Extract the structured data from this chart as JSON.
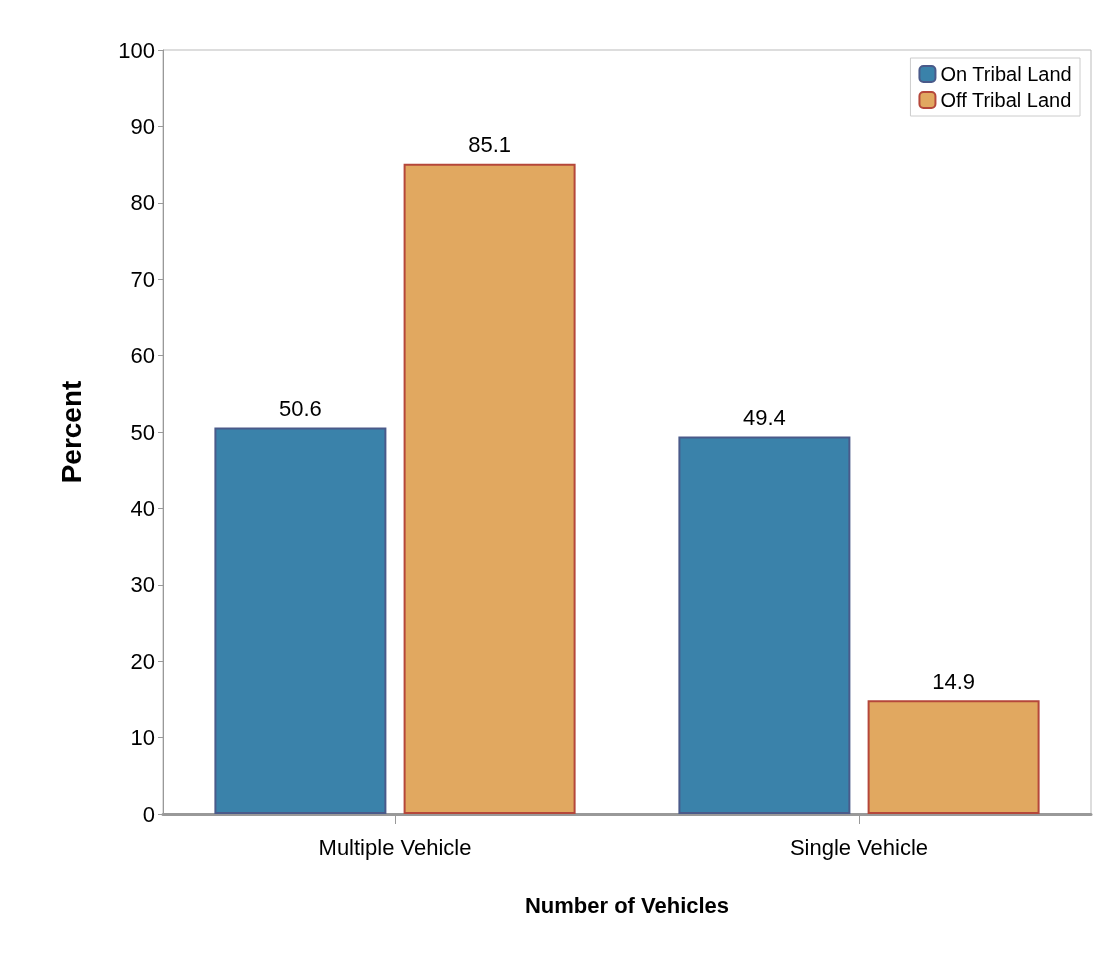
{
  "chart_data": {
    "type": "bar",
    "xlabel": "Number of Vehicles",
    "ylabel": "Percent",
    "categories": [
      "Multiple Vehicle",
      "Single Vehicle"
    ],
    "series": [
      {
        "name": "On Tribal Land",
        "color": "#3a82aa",
        "values": [
          50.6,
          49.4
        ]
      },
      {
        "name": "Off Tribal Land",
        "color": "#e1a860",
        "values": [
          85.1,
          14.9
        ]
      }
    ],
    "ylim": [
      0,
      100
    ],
    "yticks": [
      0,
      10,
      20,
      30,
      40,
      50,
      60,
      70,
      80,
      90,
      100
    ],
    "data_labels": true,
    "legend": "top right",
    "grid": false
  }
}
